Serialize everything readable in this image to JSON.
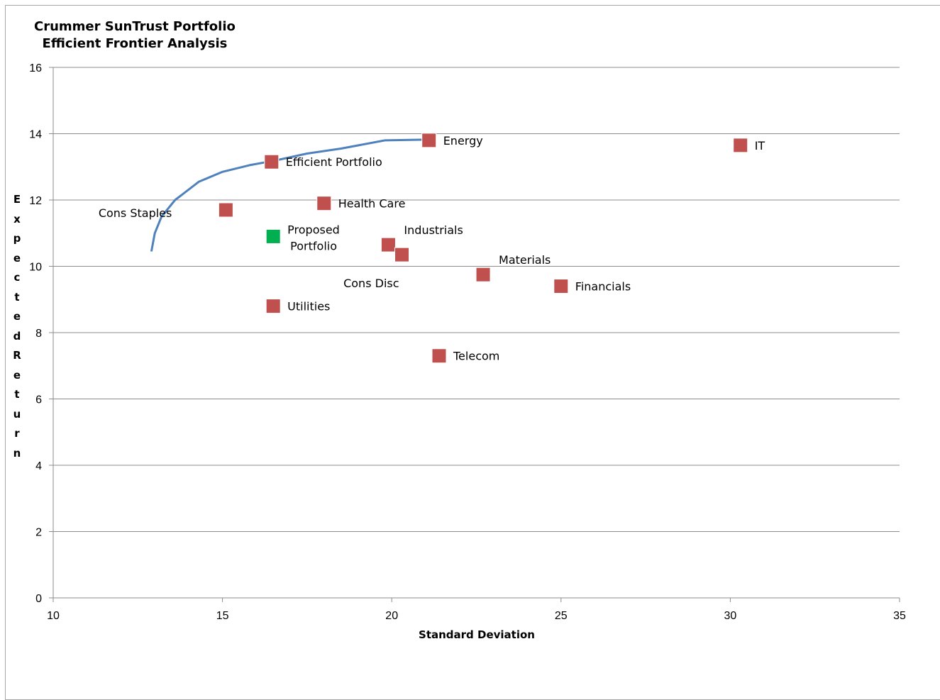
{
  "chart_data": {
    "type": "scatter",
    "title": [
      "Crummer SunTrust Portfolio",
      "Efficient Frontier Analysis"
    ],
    "xlabel": "Standard Deviation",
    "ylabel": "Expected Return",
    "xlim": [
      10,
      35
    ],
    "ylim": [
      0,
      16
    ],
    "x_ticks": [
      "10",
      "15",
      "20",
      "25",
      "30",
      "35"
    ],
    "y_ticks": [
      "0",
      "2",
      "4",
      "6",
      "8",
      "10",
      "12",
      "14",
      "16"
    ],
    "grid": "horizontal",
    "frontier_color": "#4f81bd",
    "frontier": [
      [
        12.9,
        10.45
      ],
      [
        13.0,
        11.0
      ],
      [
        13.2,
        11.5
      ],
      [
        13.6,
        12.0
      ],
      [
        14.3,
        12.55
      ],
      [
        15.0,
        12.85
      ],
      [
        15.8,
        13.05
      ],
      [
        16.6,
        13.2
      ],
      [
        17.5,
        13.4
      ],
      [
        18.5,
        13.55
      ],
      [
        19.8,
        13.8
      ],
      [
        21.0,
        13.82
      ]
    ],
    "points": [
      {
        "label": "Cons Staples",
        "x": 15.1,
        "y": 11.7,
        "color": "#c0504d",
        "label_pos": "far-left"
      },
      {
        "label": "Efficient Portfolio",
        "x": 16.45,
        "y": 13.15,
        "color": "#c0504d",
        "label_pos": "right"
      },
      {
        "label": "Proposed\nPortfolio",
        "x": 16.5,
        "y": 10.9,
        "color": "#00b050",
        "label_pos": "right-two-line"
      },
      {
        "label": "Utilities",
        "x": 16.5,
        "y": 8.8,
        "color": "#c0504d",
        "label_pos": "right"
      },
      {
        "label": "Health Care",
        "x": 18.0,
        "y": 11.9,
        "color": "#c0504d",
        "label_pos": "right"
      },
      {
        "label": "Industrials",
        "x": 19.9,
        "y": 10.65,
        "color": "#c0504d",
        "label_pos": "above-right"
      },
      {
        "label": "Cons Disc",
        "x": 20.3,
        "y": 10.35,
        "color": "#c0504d",
        "label_pos": "below-left"
      },
      {
        "label": "Energy",
        "x": 21.1,
        "y": 13.8,
        "color": "#c0504d",
        "label_pos": "right"
      },
      {
        "label": "Telecom",
        "x": 21.4,
        "y": 7.3,
        "color": "#c0504d",
        "label_pos": "right"
      },
      {
        "label": "Materials",
        "x": 22.7,
        "y": 9.75,
        "color": "#c0504d",
        "label_pos": "above-right"
      },
      {
        "label": "Financials",
        "x": 25.0,
        "y": 9.4,
        "color": "#c0504d",
        "label_pos": "right"
      },
      {
        "label": "IT",
        "x": 30.3,
        "y": 13.65,
        "color": "#c0504d",
        "label_pos": "right"
      }
    ]
  }
}
